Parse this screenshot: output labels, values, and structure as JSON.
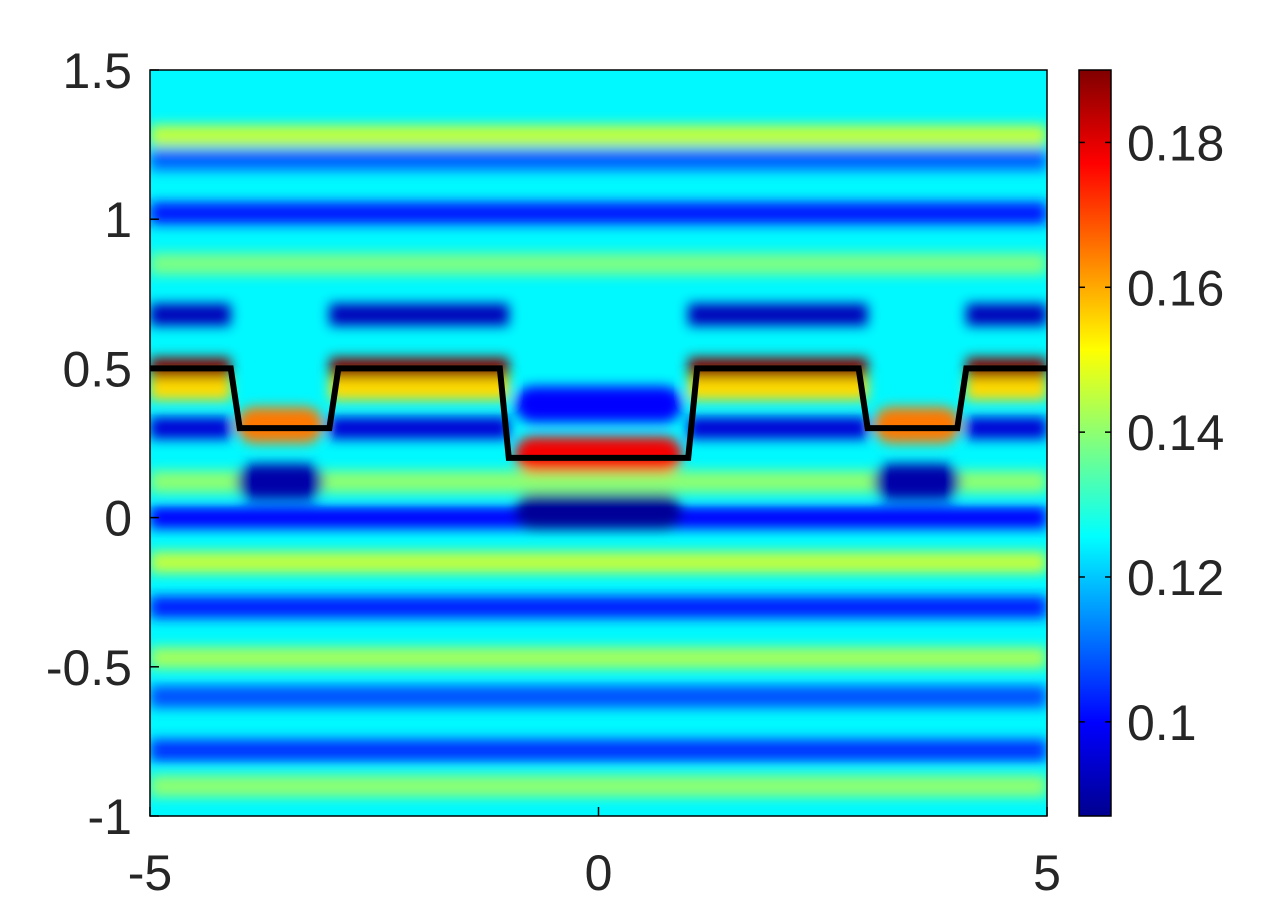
{
  "chart_data": {
    "type": "heatmap",
    "title": "",
    "xlabel": "",
    "ylabel": "",
    "xlim": [
      -5,
      5
    ],
    "ylim": [
      -1,
      1.5
    ],
    "x_ticks": [
      -5,
      0,
      5
    ],
    "x_tick_labels": [
      "-5",
      "0",
      "5"
    ],
    "y_ticks": [
      -1,
      -0.5,
      0,
      0.5,
      1,
      1.5
    ],
    "y_tick_labels": [
      "-1",
      "-0.5",
      "0",
      "0.5",
      "1",
      "1.5"
    ],
    "grid": false,
    "colormap": "jet",
    "colorbar": {
      "position": "right",
      "clim": [
        0.087,
        0.19
      ],
      "ticks": [
        0.1,
        0.12,
        0.14,
        0.16,
        0.18
      ],
      "tick_labels": [
        "0.1",
        "0.12",
        "0.14",
        "0.16",
        "0.18"
      ]
    },
    "background_value": 0.125,
    "horizontal_bands": [
      {
        "name": "band-top-1",
        "y": 1.28,
        "value": 0.145,
        "scope": "full"
      },
      {
        "name": "band-top-2",
        "y": 1.2,
        "value": 0.11,
        "scope": "full"
      },
      {
        "name": "band-top-3",
        "y": 1.02,
        "value": 0.102,
        "scope": "full"
      },
      {
        "name": "band-top-4",
        "y": 0.85,
        "value": 0.138,
        "scope": "full"
      },
      {
        "name": "band-mid-1",
        "y": 0.68,
        "value": 0.092,
        "scope": "outer"
      },
      {
        "name": "band-peak",
        "y": 0.5,
        "value": 0.19,
        "scope": "outer"
      },
      {
        "name": "band-below-peak",
        "y": 0.43,
        "value": 0.155,
        "scope": "outer"
      },
      {
        "name": "band-low-1",
        "y": 0.3,
        "value": 0.095,
        "scope": "outer"
      },
      {
        "name": "band-low-2",
        "y": 0.12,
        "value": 0.14,
        "scope": "full"
      },
      {
        "name": "band-low-3",
        "y": 0.0,
        "value": 0.1,
        "scope": "full"
      },
      {
        "name": "band-low-4",
        "y": -0.15,
        "value": 0.145,
        "scope": "full"
      },
      {
        "name": "band-low-5",
        "y": -0.3,
        "value": 0.103,
        "scope": "full"
      },
      {
        "name": "band-low-6",
        "y": -0.47,
        "value": 0.142,
        "scope": "full"
      },
      {
        "name": "band-low-7",
        "y": -0.6,
        "value": 0.108,
        "scope": "full"
      },
      {
        "name": "band-low-8",
        "y": -0.78,
        "value": 0.105,
        "scope": "full"
      },
      {
        "name": "band-low-9",
        "y": -0.9,
        "value": 0.14,
        "scope": "full"
      }
    ],
    "feature_blobs": [
      {
        "name": "center-red-band",
        "x": [
          -1.0,
          1.0
        ],
        "y": 0.21,
        "value": 0.178
      },
      {
        "name": "center-dark-blob",
        "x": [
          -1.0,
          1.0
        ],
        "y": 0.02,
        "value": 0.088
      },
      {
        "name": "center-blue-upper",
        "x": [
          -1.0,
          1.0
        ],
        "y": 0.38,
        "value": 0.1
      },
      {
        "name": "left-notch-orange",
        "x": [
          -4.1,
          -3.0
        ],
        "y": 0.31,
        "value": 0.165
      },
      {
        "name": "left-notch-dark",
        "x": [
          -4.1,
          -3.0
        ],
        "y": 0.12,
        "value": 0.09
      },
      {
        "name": "right-notch-orange",
        "x": [
          3.0,
          4.1
        ],
        "y": 0.31,
        "value": 0.165
      },
      {
        "name": "right-notch-dark",
        "x": [
          3.0,
          4.1
        ],
        "y": 0.12,
        "value": 0.09
      }
    ],
    "series": [
      {
        "type": "line",
        "color": "#000000",
        "x": [
          -5,
          -4.1,
          -4.0,
          -3.0,
          -2.9,
          -1.1,
          -1.0,
          1.0,
          1.1,
          2.9,
          3.0,
          4.0,
          4.1,
          5
        ],
        "y": [
          0.5,
          0.5,
          0.3,
          0.3,
          0.5,
          0.5,
          0.2,
          0.2,
          0.5,
          0.5,
          0.3,
          0.3,
          0.5,
          0.5
        ]
      }
    ]
  }
}
